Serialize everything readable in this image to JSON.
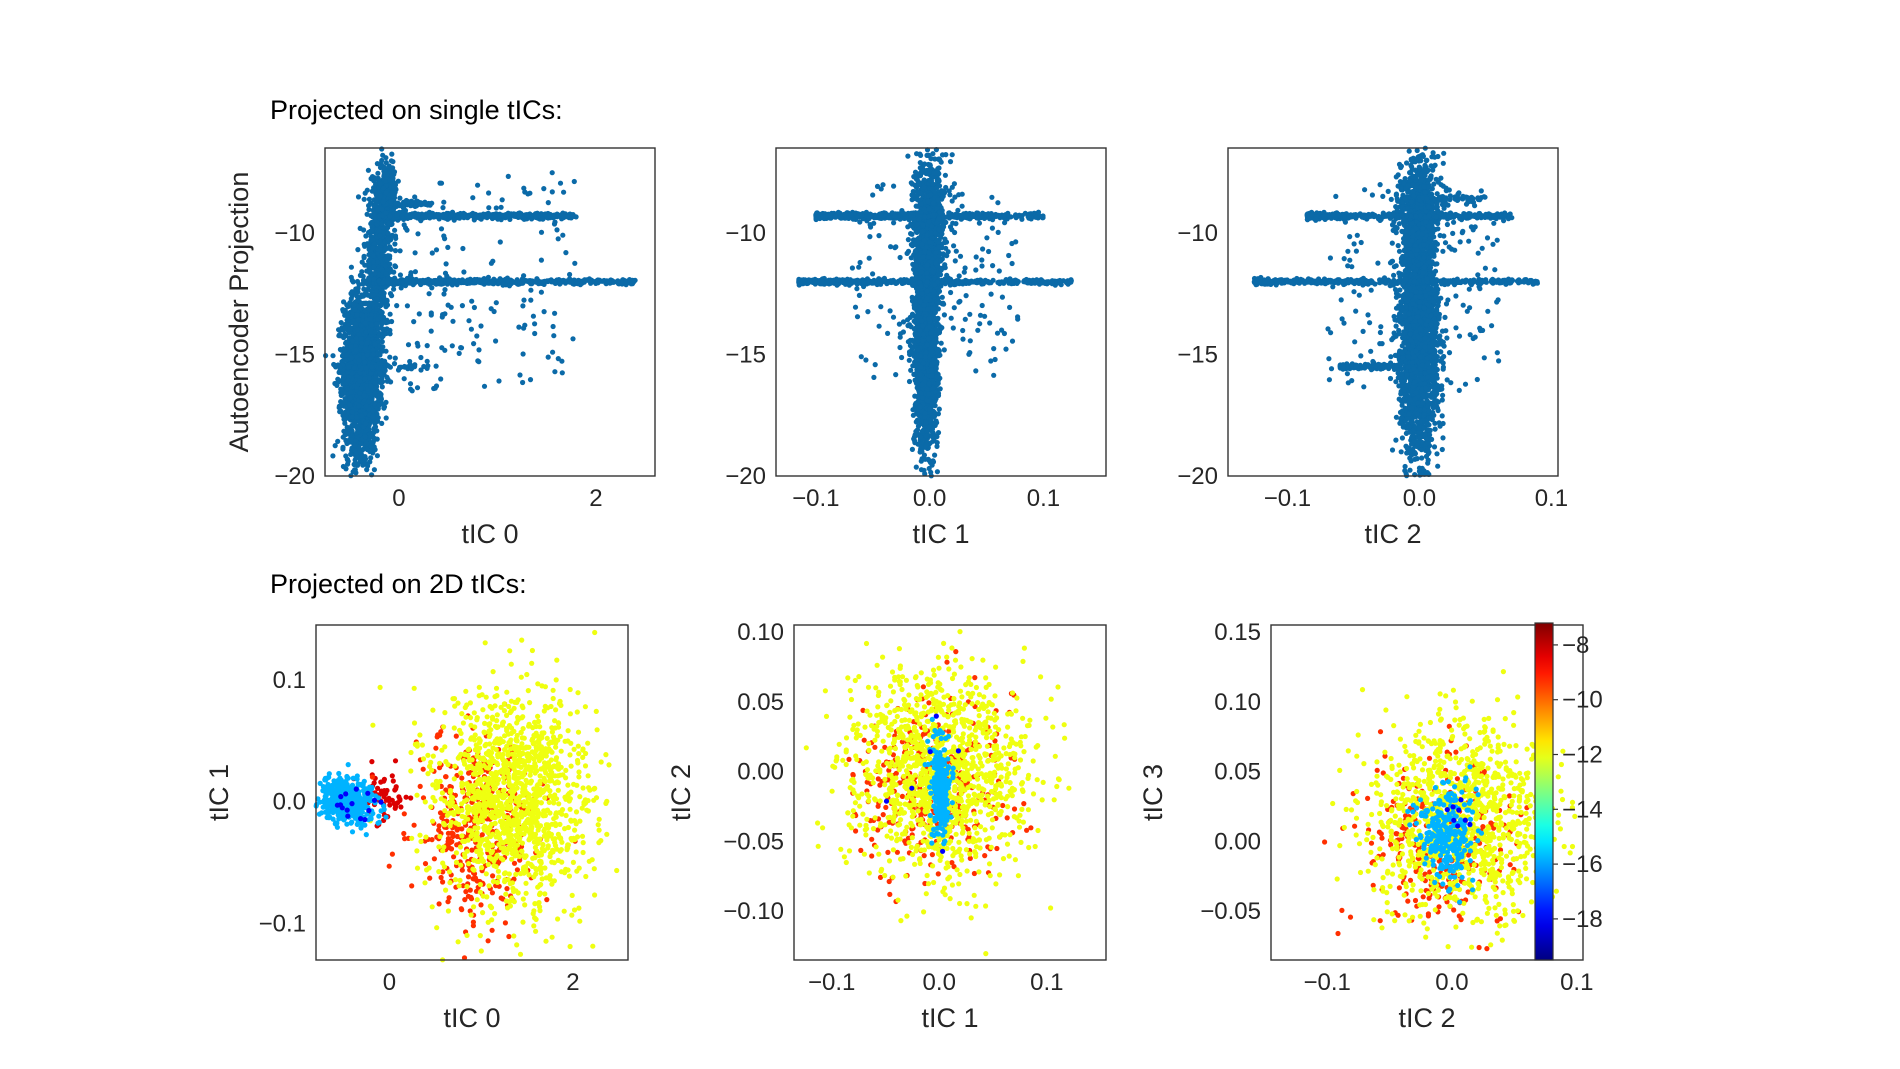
{
  "headings": {
    "row1": "Projected on single tICs:",
    "row2": "Projected on 2D tICs:"
  },
  "colors": {
    "scatter_blue": "#0b6aa8",
    "frame": "#333333",
    "colormap": "jet"
  },
  "colorbar": {
    "ticks": [
      -8,
      -10,
      -12,
      -14,
      -16,
      -18
    ],
    "tick_labels": [
      "−8",
      "−10",
      "−12",
      "−14",
      "−16",
      "−18"
    ],
    "range": [
      -19.5,
      -7.2
    ]
  },
  "chart_data": [
    {
      "type": "scatter",
      "id": "r1c1",
      "xlabel": "tIC 0",
      "ylabel": "Autoencoder Projection",
      "xlim": [
        -0.75,
        2.6
      ],
      "ylim": [
        -20,
        -6.5
      ],
      "xticks": [
        0,
        2
      ],
      "xtick_labels": [
        "0",
        "2"
      ],
      "yticks": [
        -10,
        -15,
        -20
      ],
      "ytick_labels": [
        "−10",
        "−15",
        "−20"
      ],
      "color": "#0b6aa8",
      "point_clusters": [
        {
          "x": -0.38,
          "y": -15.8,
          "sx": 0.09,
          "sy": 1.6,
          "n": 2400
        },
        {
          "x": -0.2,
          "y": -11.0,
          "sx": 0.07,
          "sy": 1.5,
          "n": 600
        },
        {
          "x": -0.12,
          "y": -8.3,
          "sx": 0.05,
          "sy": 0.5,
          "n": 250
        }
      ],
      "point_bands": [
        {
          "x0": -0.2,
          "x1": 1.8,
          "y": -9.3,
          "sy": 0.06,
          "n": 500
        },
        {
          "x0": -0.2,
          "x1": 2.4,
          "y": -12.0,
          "sy": 0.05,
          "n": 600
        },
        {
          "x0": -0.15,
          "x1": 0.35,
          "y": -8.8,
          "sy": 0.06,
          "n": 80
        },
        {
          "x0": -0.65,
          "x1": 0.4,
          "y": -15.5,
          "sy": 0.06,
          "n": 60
        }
      ],
      "point_scatter": [
        {
          "x0": -0.2,
          "x1": 1.8,
          "y0": -16.5,
          "y1": -7.5,
          "n": 180
        }
      ]
    },
    {
      "type": "scatter",
      "id": "r1c2",
      "xlabel": "tIC 1",
      "ylabel": "",
      "xlim": [
        -0.135,
        0.155
      ],
      "ylim": [
        -20,
        -6.5
      ],
      "xticks": [
        -0.1,
        0.0,
        0.1
      ],
      "xtick_labels": [
        "−0.1",
        "0.0",
        "0.1"
      ],
      "yticks": [
        -10,
        -15,
        -20
      ],
      "ytick_labels": [
        "−10",
        "−15",
        "−20"
      ],
      "color": "#0b6aa8",
      "point_clusters": [
        {
          "x": -0.003,
          "y": -14.5,
          "sx": 0.005,
          "sy": 2.2,
          "n": 2000
        },
        {
          "x": 0.0,
          "y": -9.5,
          "sx": 0.007,
          "sy": 1.4,
          "n": 700
        }
      ],
      "point_bands": [
        {
          "x0": -0.1,
          "x1": 0.1,
          "y": -9.3,
          "sy": 0.06,
          "n": 450
        },
        {
          "x0": -0.115,
          "x1": 0.125,
          "y": -12.0,
          "sy": 0.05,
          "n": 550
        }
      ],
      "point_scatter": [
        {
          "x0": -0.07,
          "x1": 0.08,
          "y0": -16,
          "y1": -8,
          "n": 160
        }
      ]
    },
    {
      "type": "scatter",
      "id": "r1c3",
      "xlabel": "tIC 2",
      "ylabel": "",
      "xlim": [
        -0.145,
        0.105
      ],
      "ylim": [
        -20,
        -6.5
      ],
      "xticks": [
        -0.1,
        0.0,
        0.1
      ],
      "xtick_labels": [
        "−0.1",
        "0.0",
        "0.1"
      ],
      "yticks": [
        -10,
        -15,
        -20
      ],
      "ytick_labels": [
        "−10",
        "−15",
        "−20"
      ],
      "color": "#0b6aa8",
      "point_clusters": [
        {
          "x": 0.0,
          "y": -14.5,
          "sx": 0.007,
          "sy": 2.3,
          "n": 2200
        },
        {
          "x": 0.0,
          "y": -9.0,
          "sx": 0.008,
          "sy": 1.2,
          "n": 600
        }
      ],
      "point_bands": [
        {
          "x0": -0.085,
          "x1": 0.07,
          "y": -9.3,
          "sy": 0.06,
          "n": 400
        },
        {
          "x0": -0.125,
          "x1": 0.09,
          "y": -12.0,
          "sy": 0.05,
          "n": 500
        },
        {
          "x0": -0.06,
          "x1": 0.0,
          "y": -15.5,
          "sy": 0.06,
          "n": 120
        },
        {
          "x0": -0.01,
          "x1": 0.05,
          "y": -8.6,
          "sy": 0.06,
          "n": 80
        }
      ],
      "point_scatter": [
        {
          "x0": -0.07,
          "x1": 0.06,
          "y0": -16.5,
          "y1": -8,
          "n": 160
        }
      ]
    },
    {
      "type": "scatter",
      "id": "r2c1",
      "xlabel": "tIC 0",
      "ylabel": "tIC 1",
      "xlim": [
        -0.8,
        2.6
      ],
      "ylim": [
        -0.13,
        0.145
      ],
      "xticks": [
        0,
        2
      ],
      "xtick_labels": [
        "0",
        "2"
      ],
      "yticks": [
        0.1,
        0.0,
        -0.1
      ],
      "ytick_labels": [
        "0.1",
        "0.0",
        "−0.1"
      ],
      "colormap": "jet",
      "crange": [
        -19.5,
        -7.2
      ],
      "point_clusters": [
        {
          "x": 1.35,
          "y": 0.0,
          "sx": 0.42,
          "sy": 0.045,
          "c": -12.0,
          "n": 1300
        },
        {
          "x": 0.95,
          "y": -0.02,
          "sx": 0.32,
          "sy": 0.04,
          "c": -9.3,
          "n": 380
        },
        {
          "x": -0.45,
          "y": 0.0,
          "sx": 0.15,
          "sy": 0.009,
          "c": -15.8,
          "n": 450
        },
        {
          "x": -0.05,
          "y": 0.005,
          "sx": 0.12,
          "sy": 0.01,
          "c": -8.3,
          "n": 60
        },
        {
          "x": -0.35,
          "y": 0.0,
          "sx": 0.12,
          "sy": 0.008,
          "c": -18.0,
          "n": 15
        }
      ]
    },
    {
      "type": "scatter",
      "id": "r2c2",
      "xlabel": "tIC 1",
      "ylabel": "tIC 2",
      "xlim": [
        -0.135,
        0.155
      ],
      "ylim": [
        -0.135,
        0.105
      ],
      "xticks": [
        -0.1,
        0.0,
        0.1
      ],
      "xtick_labels": [
        "−0.1",
        "0.0",
        "0.1"
      ],
      "yticks": [
        0.1,
        0.05,
        0.0,
        -0.05,
        -0.1
      ],
      "ytick_labels": [
        "0.10",
        "0.05",
        "0.00",
        "−0.05",
        "−0.10"
      ],
      "colormap": "jet",
      "crange": [
        -19.5,
        -7.2
      ],
      "point_clusters": [
        {
          "x": 0.0,
          "y": 0.0,
          "sx": 0.042,
          "sy": 0.036,
          "c": -12.0,
          "n": 1200
        },
        {
          "x": -0.005,
          "y": -0.01,
          "sx": 0.036,
          "sy": 0.032,
          "c": -9.3,
          "n": 340
        },
        {
          "x": 0.002,
          "y": -0.01,
          "sx": 0.005,
          "sy": 0.017,
          "c": -15.8,
          "n": 220
        },
        {
          "x": 0.0,
          "y": -0.01,
          "sx": 0.03,
          "sy": 0.03,
          "c": -18.0,
          "n": 6
        }
      ]
    },
    {
      "type": "scatter",
      "id": "r2c3",
      "xlabel": "tIC 2",
      "ylabel": "tIC 3",
      "xlim": [
        -0.145,
        0.105
      ],
      "ylim": [
        -0.085,
        0.155
      ],
      "xticks": [
        -0.1,
        0.0,
        0.1
      ],
      "xtick_labels": [
        "−0.1",
        "0.0",
        "0.1"
      ],
      "yticks": [
        0.15,
        0.1,
        0.05,
        0.0,
        -0.05
      ],
      "ytick_labels": [
        "0.15",
        "0.10",
        "0.05",
        "0.00",
        "−0.05"
      ],
      "colormap": "jet",
      "crange": [
        -19.5,
        -7.2
      ],
      "point_clusters": [
        {
          "x": 0.005,
          "y": 0.015,
          "sx": 0.036,
          "sy": 0.035,
          "c": -12.0,
          "n": 1100
        },
        {
          "x": -0.01,
          "y": 0.0,
          "sx": 0.03,
          "sy": 0.03,
          "c": -9.3,
          "n": 320
        },
        {
          "x": -0.005,
          "y": 0.005,
          "sx": 0.011,
          "sy": 0.017,
          "c": -15.8,
          "n": 260
        },
        {
          "x": 0.005,
          "y": 0.015,
          "sx": 0.006,
          "sy": 0.01,
          "c": -18.0,
          "n": 8
        }
      ]
    }
  ]
}
